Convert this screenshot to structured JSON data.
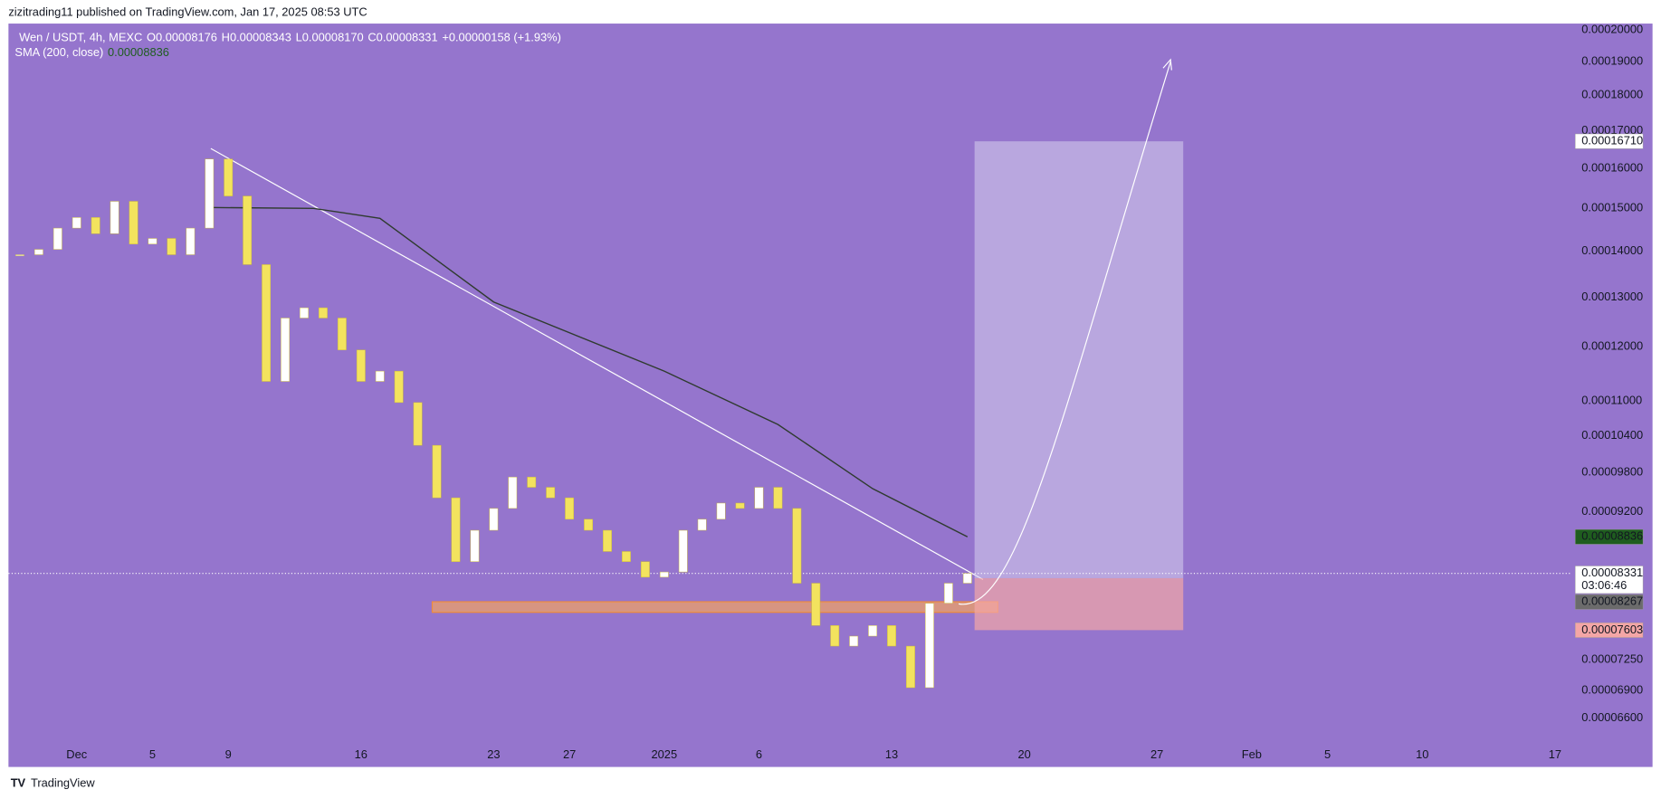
{
  "header": {
    "publisher": "zizitrading11 published on TradingView.com, Jan 17, 2025 08:53 UTC"
  },
  "legend": {
    "symbol": "Wen / USDT, 4h, MEXC",
    "ohlc": [
      {
        "key": "O",
        "value": "0.00008176"
      },
      {
        "key": "H",
        "value": "0.00008343"
      },
      {
        "key": "L",
        "value": "0.00008170"
      },
      {
        "key": "C",
        "value": "0.00008331"
      }
    ],
    "change": "+0.00000158 (+1.93%)",
    "sma_label": "SMA (200, close)",
    "sma_value": "0.00008836"
  },
  "chart_data": {
    "type": "candlestick",
    "log_scale": true,
    "up_color": "#ffffff",
    "down_color": "#f3e35e",
    "x": [
      -3,
      -2,
      -1,
      0,
      1,
      2,
      3,
      4,
      5,
      6,
      7,
      8,
      9,
      10,
      11,
      12,
      13,
      14,
      15,
      16,
      17,
      18,
      19,
      20,
      21,
      22,
      23,
      24,
      25,
      26,
      27,
      28,
      29,
      30,
      31,
      32,
      33,
      34,
      35,
      36,
      37,
      38,
      39,
      40,
      41,
      42,
      43,
      44,
      45,
      46,
      47
    ],
    "close": [
      0.0001392,
      0.0001404,
      0.0001453,
      0.0001478,
      0.000144,
      0.0001517,
      0.0001416,
      0.0001429,
      0.0001392,
      0.0001453,
      0.0001624,
      0.000153,
      0.000137,
      0.0001135,
      0.0001257,
      0.0001278,
      0.0001257,
      0.0001194,
      0.0001135,
      0.0001154,
      0.0001097,
      0.0001024,
      9.41e-05,
      8.49e-05,
      8.93e-05,
      9.25e-05,
      9.73e-05,
      9.57e-05,
      9.41e-05,
      9.09e-05,
      8.93e-05,
      8.63e-05,
      8.49e-05,
      8.28e-05,
      8.35e-05,
      8.93e-05,
      9.09e-05,
      9.33e-05,
      9.25e-05,
      9.57e-05,
      9.25e-05,
      8.2e-05,
      7.66e-05,
      7.41e-05,
      7.53e-05,
      7.66e-05,
      7.41e-05,
      6.93e-05,
      7.94e-05,
      8.2e-05,
      8.331e-05
    ],
    "sma": {
      "color": "#2f3b2f",
      "x": [
        7,
        12.5,
        16,
        22,
        31,
        37,
        42,
        47
      ],
      "values": [
        0.0001502,
        0.00015,
        0.0001476,
        0.000129,
        0.0001154,
        0.0001059,
        9.55e-05,
        8.836e-05
      ]
    },
    "ylim": [
      6.12e-05,
      0.000202
    ],
    "xlim": [
      -3.6,
      78.9
    ],
    "yticks": [
      {
        "value": 0.0002,
        "label": "0.00020000"
      },
      {
        "value": 0.00019,
        "label": "0.00019000"
      },
      {
        "value": 0.00018,
        "label": "0.00018000"
      },
      {
        "value": 0.00017,
        "label": "0.00017000"
      },
      {
        "value": 0.00016,
        "label": "0.00016000"
      },
      {
        "value": 0.00015,
        "label": "0.00015000"
      },
      {
        "value": 0.00014,
        "label": "0.00014000"
      },
      {
        "value": 0.00013,
        "label": "0.00013000"
      },
      {
        "value": 0.00012,
        "label": "0.00012000"
      },
      {
        "value": 0.00011,
        "label": "0.00011000"
      },
      {
        "value": 0.000104,
        "label": "0.00010400"
      },
      {
        "value": 9.8e-05,
        "label": "0.00009800"
      },
      {
        "value": 9.2e-05,
        "label": "0.00009200"
      },
      {
        "value": 7.25e-05,
        "label": "0.00007250"
      },
      {
        "value": 6.9e-05,
        "label": "0.00006900"
      },
      {
        "value": 6.6e-05,
        "label": "0.00006600"
      }
    ],
    "xticks": [
      {
        "value": 0,
        "label": "Dec"
      },
      {
        "value": 4,
        "label": "5"
      },
      {
        "value": 8,
        "label": "9"
      },
      {
        "value": 15,
        "label": "16"
      },
      {
        "value": 22,
        "label": "23"
      },
      {
        "value": 26,
        "label": "27"
      },
      {
        "value": 31,
        "label": "2025"
      },
      {
        "value": 36,
        "label": "6"
      },
      {
        "value": 43,
        "label": "13"
      },
      {
        "value": 50,
        "label": "20"
      },
      {
        "value": 57,
        "label": "27"
      },
      {
        "value": 62,
        "label": "Feb"
      },
      {
        "value": 66,
        "label": "5"
      },
      {
        "value": 71,
        "label": "10"
      },
      {
        "value": 78,
        "label": "17"
      }
    ],
    "position": {
      "target": {
        "value": 0.0001671,
        "label": "0.00016710"
      },
      "entry": {
        "value": 8.267e-05,
        "label": "0.00008267"
      },
      "stop": {
        "value": 7.603e-05,
        "label": "0.00007603"
      }
    },
    "last": {
      "value": 8.331e-05,
      "label": "0.00008331",
      "countdown": "03:06:46"
    },
    "sma_badge": {
      "value": 8.836e-05,
      "label": "0.00008836"
    }
  },
  "footer": {
    "brand": "TradingView"
  }
}
